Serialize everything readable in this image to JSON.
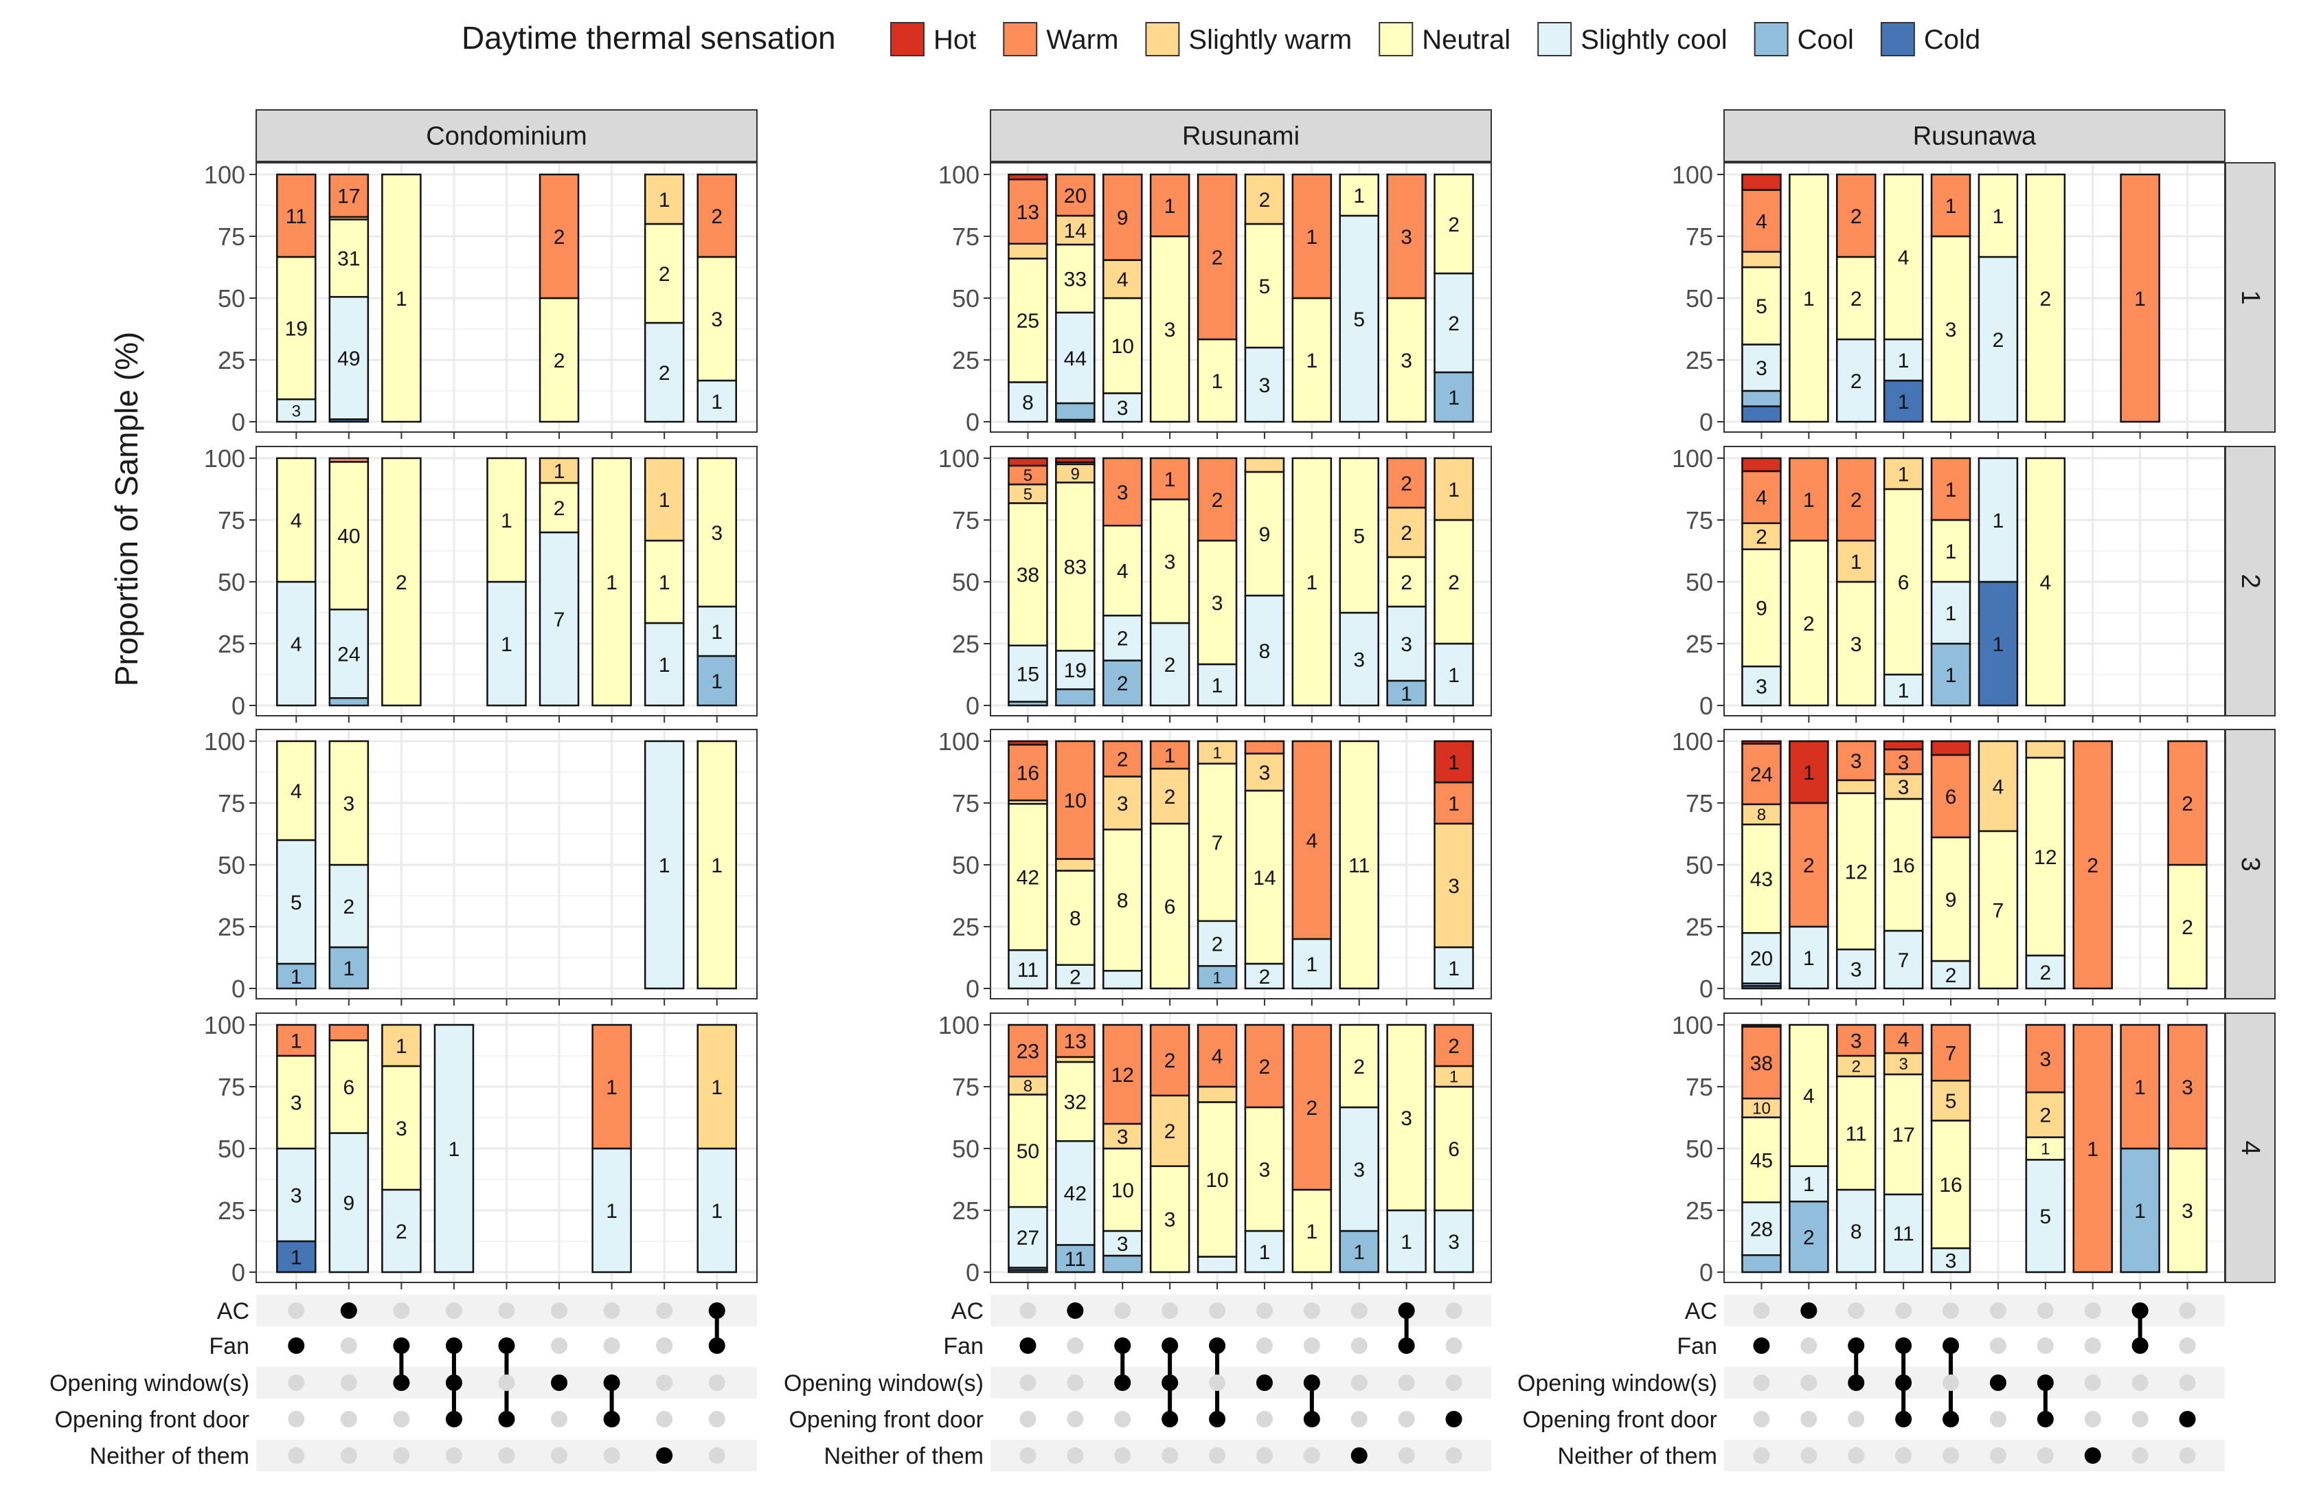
{
  "chart_data": {
    "type": "faceted-stacked-bar-upset",
    "ylabel": "Proportion of Sample (%)",
    "yticks": [
      "0",
      "25",
      "50",
      "75",
      "100"
    ],
    "ylim": [
      0,
      100
    ],
    "legend": {
      "title": "Daytime thermal sensation",
      "placement": "top",
      "items": [
        {
          "label": "Hot",
          "color": "#d7301f"
        },
        {
          "label": "Warm",
          "color": "#fc8d59"
        },
        {
          "label": "Slightly warm",
          "color": "#fed98e"
        },
        {
          "label": "Neutral",
          "color": "#ffffbf"
        },
        {
          "label": "Slightly cool",
          "color": "#e0f3f8"
        },
        {
          "label": "Cool",
          "color": "#91bfdb"
        },
        {
          "label": "Cold",
          "color": "#4575b4"
        }
      ]
    },
    "upset_sets": [
      "AC",
      "Fan",
      "Opening window(s)",
      "Opening front door",
      "Neither of them"
    ],
    "combinations": [
      [
        "Fan"
      ],
      [
        "AC"
      ],
      [
        "Fan",
        "Opening window(s)"
      ],
      [
        "Fan",
        "Opening window(s)",
        "Opening front door"
      ],
      [
        "Fan",
        "Opening front door"
      ],
      [
        "Opening window(s)"
      ],
      [
        "Opening window(s)",
        "Opening front door"
      ],
      [
        "Neither of them"
      ],
      [
        "AC",
        "Fan"
      ],
      [
        "Opening front door"
      ]
    ],
    "columns": [
      {
        "title": "Condominium",
        "combo_order": [
          0,
          1,
          2,
          3,
          4,
          5,
          6,
          7,
          8
        ],
        "rows": [
          {
            "label": "1",
            "bars": [
              [
                0,
                11,
                0,
                19,
                3,
                0,
                0
              ],
              [
                0,
                17,
                1,
                31,
                49,
                0,
                1
              ],
              [
                0,
                0,
                0,
                1,
                0,
                0,
                0
              ],
              null,
              null,
              [
                0,
                2,
                0,
                2,
                0,
                0,
                0
              ],
              null,
              [
                0,
                0,
                1,
                2,
                2,
                0,
                0
              ],
              [
                0,
                2,
                0,
                3,
                1,
                0,
                0
              ]
            ]
          },
          {
            "label": "2",
            "bars": [
              [
                0,
                0,
                0,
                4,
                4,
                0,
                0
              ],
              [
                0,
                1,
                0,
                40,
                24,
                2,
                0
              ],
              [
                0,
                0,
                0,
                2,
                0,
                0,
                0
              ],
              null,
              [
                0,
                0,
                0,
                1,
                1,
                0,
                0
              ],
              [
                0,
                0,
                1,
                2,
                7,
                0,
                0
              ],
              [
                0,
                0,
                0,
                1,
                0,
                0,
                0
              ],
              [
                0,
                0,
                1,
                1,
                1,
                0,
                0
              ],
              [
                0,
                0,
                0,
                3,
                1,
                1,
                0
              ]
            ]
          },
          {
            "label": "3",
            "bars": [
              [
                0,
                0,
                0,
                4,
                5,
                1,
                0
              ],
              [
                0,
                0,
                0,
                3,
                2,
                1,
                0
              ],
              null,
              null,
              null,
              null,
              null,
              [
                0,
                0,
                0,
                0,
                1,
                0,
                0
              ],
              [
                0,
                0,
                0,
                1,
                0,
                0,
                0
              ]
            ]
          },
          {
            "label": "4",
            "bars": [
              [
                0,
                1,
                0,
                3,
                3,
                0,
                1
              ],
              [
                0,
                1,
                0,
                6,
                9,
                0,
                0
              ],
              [
                0,
                0,
                1,
                3,
                2,
                0,
                0
              ],
              [
                0,
                0,
                0,
                0,
                1,
                0,
                0
              ],
              null,
              null,
              [
                0,
                1,
                0,
                0,
                1,
                0,
                0
              ],
              null,
              [
                0,
                0,
                1,
                0,
                1,
                0,
                0
              ]
            ]
          }
        ]
      },
      {
        "title": "Rusunami",
        "combo_order": [
          0,
          1,
          2,
          3,
          4,
          5,
          6,
          7,
          8,
          9
        ],
        "rows": [
          {
            "label": "1",
            "bars": [
              [
                1,
                13,
                3,
                25,
                8,
                0,
                0
              ],
              [
                0,
                20,
                14,
                33,
                44,
                8,
                1
              ],
              [
                0,
                9,
                4,
                10,
                3,
                0,
                0
              ],
              [
                0,
                1,
                0,
                3,
                0,
                0,
                0
              ],
              [
                0,
                2,
                0,
                1,
                0,
                0,
                0
              ],
              [
                0,
                0,
                2,
                5,
                3,
                0,
                0
              ],
              [
                0,
                1,
                0,
                1,
                0,
                0,
                0
              ],
              [
                0,
                0,
                0,
                1,
                5,
                0,
                0
              ],
              [
                0,
                3,
                0,
                3,
                0,
                0,
                0
              ],
              [
                0,
                0,
                0,
                2,
                2,
                1,
                0
              ]
            ]
          },
          {
            "label": "2",
            "bars": [
              [
                2,
                5,
                5,
                38,
                15,
                1,
                0
              ],
              [
                2,
                1,
                9,
                83,
                19,
                8,
                0
              ],
              [
                0,
                3,
                0,
                4,
                2,
                2,
                0
              ],
              [
                0,
                1,
                0,
                3,
                2,
                0,
                0
              ],
              [
                0,
                2,
                0,
                3,
                1,
                0,
                0
              ],
              [
                0,
                0,
                1,
                9,
                8,
                0,
                0
              ],
              [
                0,
                0,
                0,
                1,
                0,
                0,
                0
              ],
              [
                0,
                0,
                0,
                5,
                3,
                0,
                0
              ],
              [
                0,
                2,
                2,
                2,
                3,
                1,
                0
              ],
              [
                0,
                0,
                1,
                2,
                1,
                0,
                0
              ]
            ]
          },
          {
            "label": "3",
            "bars": [
              [
                1,
                16,
                1,
                42,
                11,
                0,
                0
              ],
              [
                0,
                10,
                1,
                8,
                2,
                0,
                0
              ],
              [
                0,
                2,
                3,
                8,
                1,
                0,
                0
              ],
              [
                0,
                1,
                2,
                6,
                0,
                0,
                0
              ],
              [
                0,
                0,
                1,
                7,
                2,
                1,
                0
              ],
              [
                0,
                1,
                3,
                14,
                2,
                0,
                0
              ],
              [
                0,
                4,
                0,
                0,
                1,
                0,
                0
              ],
              [
                0,
                0,
                0,
                11,
                0,
                0,
                0
              ],
              null,
              [
                1,
                1,
                3,
                0,
                1,
                0,
                0
              ]
            ]
          },
          {
            "label": "4",
            "bars": [
              [
                0,
                23,
                8,
                50,
                27,
                1,
                1
              ],
              [
                0,
                13,
                2,
                32,
                42,
                11,
                0
              ],
              [
                0,
                12,
                3,
                10,
                3,
                2,
                0
              ],
              [
                0,
                2,
                2,
                3,
                0,
                0,
                0
              ],
              [
                0,
                4,
                1,
                10,
                1,
                0,
                0
              ],
              [
                0,
                2,
                0,
                3,
                1,
                0,
                0
              ],
              [
                0,
                2,
                0,
                1,
                0,
                0,
                0
              ],
              [
                0,
                0,
                0,
                2,
                3,
                1,
                0
              ],
              [
                0,
                0,
                0,
                3,
                1,
                0,
                0
              ],
              [
                0,
                2,
                1,
                6,
                3,
                0,
                0
              ]
            ]
          }
        ]
      },
      {
        "title": "Rusunawa",
        "combo_order": [
          0,
          1,
          2,
          3,
          4,
          5,
          6,
          7,
          8,
          9
        ],
        "rows": [
          {
            "label": "1",
            "bars": [
              [
                1,
                4,
                1,
                5,
                3,
                1,
                1
              ],
              [
                0,
                0,
                0,
                1,
                0,
                0,
                0
              ],
              [
                0,
                2,
                0,
                2,
                2,
                0,
                0
              ],
              [
                0,
                0,
                0,
                4,
                1,
                0,
                1
              ],
              [
                0,
                1,
                0,
                3,
                0,
                0,
                0
              ],
              [
                0,
                0,
                0,
                1,
                2,
                0,
                0
              ],
              [
                0,
                0,
                0,
                2,
                0,
                0,
                0
              ],
              null,
              [
                0,
                1,
                0,
                0,
                0,
                0,
                0
              ],
              null
            ]
          },
          {
            "label": "2",
            "bars": [
              [
                1,
                4,
                2,
                9,
                3,
                0,
                0
              ],
              [
                0,
                1,
                0,
                2,
                0,
                0,
                0
              ],
              [
                0,
                2,
                1,
                3,
                0,
                0,
                0
              ],
              [
                0,
                0,
                1,
                6,
                1,
                0,
                0
              ],
              [
                0,
                1,
                0,
                1,
                1,
                1,
                0
              ],
              [
                0,
                0,
                0,
                0,
                1,
                0,
                1
              ],
              [
                0,
                0,
                0,
                4,
                0,
                0,
                0
              ],
              null,
              null,
              null
            ]
          },
          {
            "label": "3",
            "bars": [
              [
                1,
                24,
                8,
                43,
                20,
                1,
                1
              ],
              [
                1,
                2,
                0,
                0,
                1,
                0,
                0
              ],
              [
                0,
                3,
                1,
                12,
                3,
                0,
                0
              ],
              [
                1,
                3,
                3,
                16,
                7,
                0,
                0
              ],
              [
                1,
                6,
                0,
                9,
                2,
                0,
                0
              ],
              [
                0,
                0,
                4,
                7,
                0,
                0,
                0
              ],
              [
                0,
                0,
                1,
                12,
                2,
                0,
                0
              ],
              [
                0,
                2,
                0,
                0,
                0,
                0,
                0
              ],
              null,
              [
                0,
                2,
                0,
                2,
                0,
                0,
                0
              ]
            ]
          },
          {
            "label": "4",
            "bars": [
              [
                1,
                38,
                10,
                45,
                28,
                9,
                0
              ],
              [
                0,
                0,
                0,
                4,
                1,
                2,
                0
              ],
              [
                0,
                3,
                2,
                11,
                8,
                0,
                0
              ],
              [
                0,
                4,
                3,
                17,
                11,
                0,
                0
              ],
              [
                0,
                7,
                5,
                16,
                3,
                0,
                0
              ],
              null,
              [
                0,
                3,
                2,
                1,
                5,
                0,
                0
              ],
              [
                0,
                1,
                0,
                0,
                0,
                0,
                0
              ],
              [
                0,
                1,
                0,
                0,
                0,
                1,
                0
              ],
              [
                0,
                3,
                0,
                3,
                0,
                0,
                0
              ]
            ]
          }
        ]
      }
    ]
  }
}
